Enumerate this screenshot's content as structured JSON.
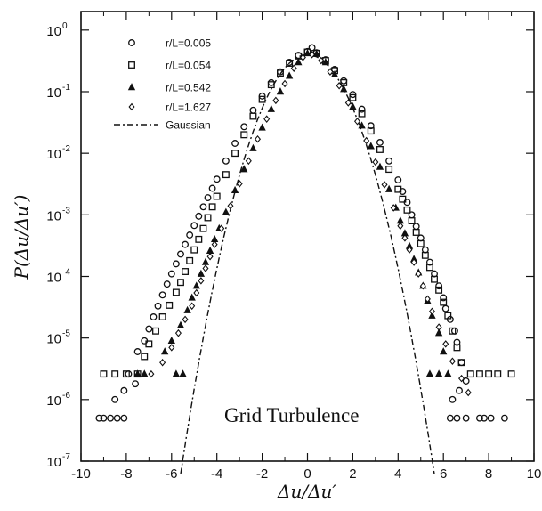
{
  "chart_data": {
    "type": "scatter",
    "xlabel": "Δu/Δu′",
    "ylabel": "P(Δu/Δu′)",
    "xlim": [
      -10,
      10
    ],
    "ylim": [
      1e-07,
      2
    ],
    "yscale": "log",
    "xticks": [
      "-10",
      "-8",
      "-6",
      "-4",
      "-2",
      "0",
      "2",
      "4",
      "6",
      "8",
      "10"
    ],
    "yticks": [
      {
        "base": "10",
        "exp": "0",
        "value": 1
      },
      {
        "base": "10",
        "exp": "-1",
        "value": 0.1
      },
      {
        "base": "10",
        "exp": "-2",
        "value": 0.01
      },
      {
        "base": "10",
        "exp": "-3",
        "value": 0.001
      },
      {
        "base": "10",
        "exp": "-4",
        "value": 0.0001
      },
      {
        "base": "10",
        "exp": "-5",
        "value": 1e-05
      },
      {
        "base": "10",
        "exp": "-6",
        "value": 1e-06
      },
      {
        "base": "10",
        "exp": "-7",
        "value": 1e-07
      }
    ],
    "grid": false,
    "legend_position": "top-left",
    "annotation": "Grid Turbulence",
    "series": [
      {
        "name": "r/L=0.005",
        "marker": "circle",
        "points": [
          [
            -9.2,
            5e-07
          ],
          [
            -9.0,
            5e-07
          ],
          [
            -8.7,
            5e-07
          ],
          [
            -8.4,
            5e-07
          ],
          [
            -8.1,
            5e-07
          ],
          [
            -8.5,
            1e-06
          ],
          [
            -8.1,
            1.4e-06
          ],
          [
            -7.6,
            1.8e-06
          ],
          [
            -7.9,
            2.6e-06
          ],
          [
            -7.5,
            6e-06
          ],
          [
            -7.2,
            9e-06
          ],
          [
            -7.0,
            1.4e-05
          ],
          [
            -6.8,
            2.2e-05
          ],
          [
            -6.6,
            3.3e-05
          ],
          [
            -6.4,
            5e-05
          ],
          [
            -6.2,
            7.5e-05
          ],
          [
            -6.0,
            0.00011
          ],
          [
            -5.8,
            0.00016
          ],
          [
            -5.6,
            0.00023
          ],
          [
            -5.4,
            0.00033
          ],
          [
            -5.2,
            0.00047
          ],
          [
            -5.0,
            0.00067
          ],
          [
            -4.8,
            0.00095
          ],
          [
            -4.6,
            0.00135
          ],
          [
            -4.4,
            0.0019
          ],
          [
            -4.2,
            0.0027
          ],
          [
            -4.0,
            0.0038
          ],
          [
            -3.6,
            0.0075
          ],
          [
            -3.2,
            0.0145
          ],
          [
            -2.8,
            0.027
          ],
          [
            -2.4,
            0.05
          ],
          [
            -2.0,
            0.085
          ],
          [
            -1.6,
            0.14
          ],
          [
            -1.2,
            0.21
          ],
          [
            -0.8,
            0.3
          ],
          [
            -0.4,
            0.39
          ],
          [
            0.0,
            0.45
          ],
          [
            0.2,
            0.52
          ],
          [
            0.4,
            0.43
          ],
          [
            0.8,
            0.33
          ],
          [
            1.2,
            0.23
          ],
          [
            1.6,
            0.15
          ],
          [
            2.0,
            0.09
          ],
          [
            2.4,
            0.052
          ],
          [
            2.8,
            0.028
          ],
          [
            3.2,
            0.015
          ],
          [
            3.6,
            0.0075
          ],
          [
            4.0,
            0.0037
          ],
          [
            4.2,
            0.0024
          ],
          [
            4.4,
            0.0016
          ],
          [
            4.6,
            0.001
          ],
          [
            4.8,
            0.00065
          ],
          [
            5.0,
            0.00042
          ],
          [
            5.2,
            0.00027
          ],
          [
            5.4,
            0.00017
          ],
          [
            5.6,
            0.00011
          ],
          [
            5.8,
            7e-05
          ],
          [
            6.0,
            4.5e-05
          ],
          [
            6.1,
            3e-05
          ],
          [
            6.3,
            2e-05
          ],
          [
            6.5,
            1.3e-05
          ],
          [
            6.6,
            8.5e-06
          ],
          [
            6.8,
            4e-06
          ],
          [
            7.0,
            2e-06
          ],
          [
            6.7,
            1.4e-06
          ],
          [
            6.4,
            1e-06
          ],
          [
            6.3,
            5e-07
          ],
          [
            6.6,
            5e-07
          ],
          [
            7.0,
            5e-07
          ],
          [
            7.6,
            5e-07
          ],
          [
            7.8,
            5e-07
          ],
          [
            8.1,
            5e-07
          ],
          [
            8.7,
            5e-07
          ]
        ]
      },
      {
        "name": "r/L=0.054",
        "marker": "square",
        "points": [
          [
            -9.0,
            2.6e-06
          ],
          [
            -8.5,
            2.6e-06
          ],
          [
            -8.0,
            2.6e-06
          ],
          [
            -7.5,
            2.6e-06
          ],
          [
            -7.2,
            5e-06
          ],
          [
            -7.0,
            8e-06
          ],
          [
            -6.7,
            1.3e-05
          ],
          [
            -6.4,
            2.2e-05
          ],
          [
            -6.1,
            3.4e-05
          ],
          [
            -5.8,
            5.5e-05
          ],
          [
            -5.6,
            8e-05
          ],
          [
            -5.4,
            0.00012
          ],
          [
            -5.2,
            0.00018
          ],
          [
            -5.0,
            0.00027
          ],
          [
            -4.8,
            0.0004
          ],
          [
            -4.6,
            0.0006
          ],
          [
            -4.4,
            0.0009
          ],
          [
            -4.2,
            0.00135
          ],
          [
            -4.0,
            0.002
          ],
          [
            -3.6,
            0.0045
          ],
          [
            -3.2,
            0.01
          ],
          [
            -2.8,
            0.02
          ],
          [
            -2.4,
            0.04
          ],
          [
            -2.0,
            0.075
          ],
          [
            -1.6,
            0.13
          ],
          [
            -1.2,
            0.2
          ],
          [
            -0.8,
            0.29
          ],
          [
            -0.4,
            0.38
          ],
          [
            0.0,
            0.44
          ],
          [
            0.4,
            0.42
          ],
          [
            0.8,
            0.32
          ],
          [
            1.2,
            0.22
          ],
          [
            1.6,
            0.14
          ],
          [
            2.0,
            0.08
          ],
          [
            2.4,
            0.044
          ],
          [
            2.8,
            0.023
          ],
          [
            3.2,
            0.0115
          ],
          [
            3.6,
            0.0055
          ],
          [
            4.0,
            0.0026
          ],
          [
            4.2,
            0.0018
          ],
          [
            4.4,
            0.0012
          ],
          [
            4.6,
            0.0008
          ],
          [
            4.8,
            0.00052
          ],
          [
            5.0,
            0.00034
          ],
          [
            5.2,
            0.00022
          ],
          [
            5.4,
            0.00014
          ],
          [
            5.6,
            9e-05
          ],
          [
            5.8,
            6e-05
          ],
          [
            6.0,
            3.8e-05
          ],
          [
            6.2,
            2.3e-05
          ],
          [
            6.4,
            1.3e-05
          ],
          [
            6.6,
            7e-06
          ],
          [
            6.8,
            4e-06
          ],
          [
            7.2,
            2.6e-06
          ],
          [
            7.6,
            2.6e-06
          ],
          [
            8.0,
            2.6e-06
          ],
          [
            8.4,
            2.6e-06
          ],
          [
            9.0,
            2.6e-06
          ]
        ]
      },
      {
        "name": "r/L=0.542",
        "marker": "triangle",
        "points": [
          [
            -7.5,
            2.6e-06
          ],
          [
            -7.2,
            2.6e-06
          ],
          [
            -5.8,
            2.6e-06
          ],
          [
            -5.5,
            2.6e-06
          ],
          [
            -6.3,
            6e-06
          ],
          [
            -6.0,
            9e-06
          ],
          [
            -5.6,
            1.6e-05
          ],
          [
            -5.3,
            2.8e-05
          ],
          [
            -5.1,
            4.5e-05
          ],
          [
            -4.9,
            7e-05
          ],
          [
            -4.7,
            0.00011
          ],
          [
            -4.5,
            0.00017
          ],
          [
            -4.3,
            0.00026
          ],
          [
            -4.1,
            0.0004
          ],
          [
            -3.9,
            0.0006
          ],
          [
            -3.6,
            0.0011
          ],
          [
            -3.2,
            0.0025
          ],
          [
            -2.8,
            0.0055
          ],
          [
            -2.4,
            0.012
          ],
          [
            -2.0,
            0.026
          ],
          [
            -1.6,
            0.052
          ],
          [
            -1.2,
            0.1
          ],
          [
            -0.8,
            0.18
          ],
          [
            -0.4,
            0.3
          ],
          [
            0.0,
            0.42
          ],
          [
            0.4,
            0.41
          ],
          [
            0.8,
            0.3
          ],
          [
            1.2,
            0.19
          ],
          [
            1.6,
            0.11
          ],
          [
            2.0,
            0.057
          ],
          [
            2.4,
            0.028
          ],
          [
            2.8,
            0.013
          ],
          [
            3.2,
            0.006
          ],
          [
            3.6,
            0.0026
          ],
          [
            3.9,
            0.0013
          ],
          [
            4.1,
            0.0008
          ],
          [
            4.3,
            0.0005
          ],
          [
            4.5,
            0.00031
          ],
          [
            4.7,
            0.00019
          ],
          [
            4.9,
            0.000115
          ],
          [
            5.1,
            7e-05
          ],
          [
            5.3,
            4e-05
          ],
          [
            5.5,
            2.3e-05
          ],
          [
            5.8,
            1.2e-05
          ],
          [
            6.0,
            6e-06
          ],
          [
            5.4,
            2.6e-06
          ],
          [
            5.8,
            2.6e-06
          ],
          [
            6.2,
            2.6e-06
          ]
        ]
      },
      {
        "name": "r/L=1.627",
        "marker": "diamond",
        "points": [
          [
            -6.9,
            2.6e-06
          ],
          [
            -6.4,
            4e-06
          ],
          [
            -6.0,
            7e-06
          ],
          [
            -5.7,
            1.2e-05
          ],
          [
            -5.4,
            2e-05
          ],
          [
            -5.1,
            3.3e-05
          ],
          [
            -4.9,
            5.4e-05
          ],
          [
            -4.7,
            8.5e-05
          ],
          [
            -4.5,
            0.000135
          ],
          [
            -4.3,
            0.00021
          ],
          [
            -4.1,
            0.00033
          ],
          [
            -3.8,
            0.0006
          ],
          [
            -3.4,
            0.0014
          ],
          [
            -3.0,
            0.0032
          ],
          [
            -2.6,
            0.0075
          ],
          [
            -2.2,
            0.017
          ],
          [
            -1.8,
            0.036
          ],
          [
            -1.4,
            0.072
          ],
          [
            -1.0,
            0.135
          ],
          [
            -0.6,
            0.24
          ],
          [
            -0.2,
            0.36
          ],
          [
            0.2,
            0.4
          ],
          [
            0.6,
            0.32
          ],
          [
            1.0,
            0.21
          ],
          [
            1.4,
            0.125
          ],
          [
            1.8,
            0.066
          ],
          [
            2.2,
            0.033
          ],
          [
            2.6,
            0.016
          ],
          [
            3.0,
            0.0072
          ],
          [
            3.4,
            0.0031
          ],
          [
            3.8,
            0.0013
          ],
          [
            4.1,
            0.00066
          ],
          [
            4.3,
            0.00042
          ],
          [
            4.5,
            0.00027
          ],
          [
            4.7,
            0.00017
          ],
          [
            4.9,
            0.00011
          ],
          [
            5.1,
            7e-05
          ],
          [
            5.3,
            4.3e-05
          ],
          [
            5.5,
            2.7e-05
          ],
          [
            5.8,
            1.5e-05
          ],
          [
            6.1,
            8e-06
          ],
          [
            6.4,
            4.2e-06
          ],
          [
            6.8,
            2.2e-06
          ],
          [
            7.1,
            1.3e-06
          ]
        ]
      },
      {
        "name": "Gaussian",
        "marker": "dashdot-line",
        "x_range": [
          -5.6,
          5.6
        ],
        "mean": 0,
        "std": 1
      }
    ]
  }
}
